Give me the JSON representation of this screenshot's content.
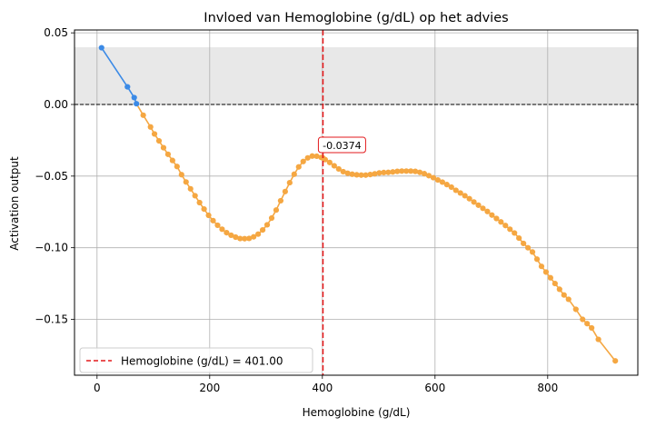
{
  "chart_data": {
    "type": "line",
    "title": "Invloed van Hemoglobine (g/dL) op het advies",
    "xlabel": "Hemoglobine (g/dL)",
    "ylabel": "Activation output",
    "xlim": [
      -40,
      960
    ],
    "ylim": [
      -0.189,
      0.052
    ],
    "xticks": [
      0,
      200,
      400,
      600,
      800
    ],
    "yticks": [
      0.05,
      0.0,
      -0.05,
      -0.1,
      -0.15
    ],
    "ytick_labels": [
      "0.05",
      "0.00",
      "−0.05",
      "−0.10",
      "−0.15"
    ],
    "grid": true,
    "shaded_band": {
      "y_from": 0.0,
      "y_to": 0.04,
      "color": "#e8e8e8"
    },
    "zero_line": {
      "y": 0.0,
      "color": "#000000",
      "style": "dashed"
    },
    "marker_line": {
      "x": 401,
      "color": "#e31a1c",
      "style": "dashed",
      "legend_label": "Hemoglobine (g/dL) = 401.00"
    },
    "annotation": {
      "x": 401,
      "y": -0.0374,
      "text": "-0.0374",
      "color": "#e31a1c"
    },
    "legend_position": "lower-left",
    "colors": {
      "positive": "#3b8ae6",
      "negative": "#f5a742"
    },
    "series": [
      {
        "x": [
          8,
          54,
          66,
          70,
          82,
          95,
          102,
          110,
          118,
          126,
          134,
          142,
          150,
          158,
          166,
          174,
          182,
          190,
          198,
          206,
          214,
          222,
          230,
          238,
          246,
          254,
          262,
          270,
          278,
          286,
          294,
          302,
          310,
          318,
          326,
          334,
          342,
          350,
          358,
          366,
          374,
          382,
          390,
          398,
          401,
          405,
          413,
          421,
          429,
          437,
          445,
          453,
          461,
          469,
          477,
          485,
          493,
          501,
          509,
          517,
          525,
          533,
          541,
          549,
          557,
          565,
          573,
          581,
          589,
          597,
          605,
          613,
          621,
          629,
          637,
          645,
          653,
          661,
          669,
          677,
          685,
          693,
          701,
          709,
          717,
          725,
          733,
          741,
          749,
          757,
          765,
          773,
          781,
          789,
          797,
          805,
          813,
          821,
          829,
          837,
          850,
          862,
          870,
          878,
          890,
          920
        ],
        "y": [
          0.0396,
          0.0123,
          0.0048,
          0.0005,
          -0.0075,
          -0.0157,
          -0.0206,
          -0.0254,
          -0.0302,
          -0.0348,
          -0.0391,
          -0.0433,
          -0.049,
          -0.0541,
          -0.0589,
          -0.0637,
          -0.0685,
          -0.073,
          -0.0774,
          -0.0811,
          -0.0843,
          -0.0871,
          -0.0895,
          -0.0913,
          -0.0926,
          -0.0936,
          -0.0937,
          -0.0935,
          -0.0924,
          -0.0905,
          -0.0876,
          -0.084,
          -0.0793,
          -0.0737,
          -0.0672,
          -0.0608,
          -0.0546,
          -0.0487,
          -0.0436,
          -0.0398,
          -0.0373,
          -0.036,
          -0.0361,
          -0.037,
          -0.0374,
          -0.0385,
          -0.0405,
          -0.0428,
          -0.045,
          -0.0469,
          -0.048,
          -0.0487,
          -0.0491,
          -0.0493,
          -0.0493,
          -0.0489,
          -0.0484,
          -0.0478,
          -0.0475,
          -0.0474,
          -0.0471,
          -0.0467,
          -0.0465,
          -0.0465,
          -0.0465,
          -0.0467,
          -0.0474,
          -0.0483,
          -0.0497,
          -0.0511,
          -0.0527,
          -0.0542,
          -0.0559,
          -0.0577,
          -0.0599,
          -0.0618,
          -0.0637,
          -0.0658,
          -0.0681,
          -0.0703,
          -0.0725,
          -0.0747,
          -0.0772,
          -0.0796,
          -0.082,
          -0.0845,
          -0.0871,
          -0.0897,
          -0.0933,
          -0.097,
          -0.1,
          -0.103,
          -0.108,
          -0.113,
          -0.117,
          -0.121,
          -0.125,
          -0.129,
          -0.133,
          -0.136,
          -0.143,
          -0.15,
          -0.153,
          -0.156,
          -0.164,
          -0.179
        ]
      }
    ]
  }
}
